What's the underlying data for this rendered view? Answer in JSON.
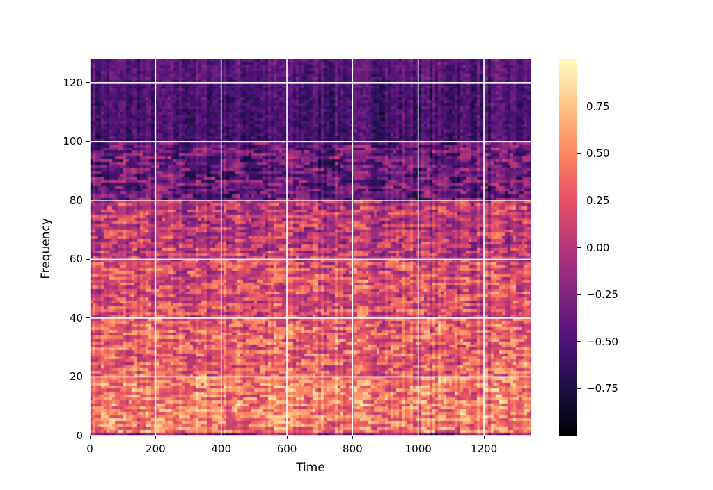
{
  "chart_data": {
    "type": "heatmap",
    "title": "",
    "xlabel": "Time",
    "ylabel": "Frequency",
    "xlim": [
      0,
      1344
    ],
    "ylim": [
      0,
      128
    ],
    "xticks": [
      "0",
      "200",
      "400",
      "600",
      "800",
      "1000",
      "1200"
    ],
    "yticks": [
      "0",
      "20",
      "40",
      "60",
      "80",
      "100",
      "120"
    ],
    "xtick_values": [
      0,
      200,
      400,
      600,
      800,
      1000,
      1200
    ],
    "ytick_values": [
      0,
      20,
      40,
      60,
      80,
      100,
      120
    ],
    "grid": true,
    "colormap": "magma",
    "colorbar": {
      "range": [
        -1,
        1
      ],
      "ticks": [
        "−0.75",
        "−0.50",
        "−0.25",
        "0.00",
        "0.25",
        "0.50",
        "0.75"
      ],
      "tick_values": [
        -0.75,
        -0.5,
        -0.25,
        0,
        0.25,
        0.5,
        0.75
      ]
    },
    "frequency_band_mean_values": [
      {
        "band": [
          0,
          1
        ],
        "mean": -0.3
      },
      {
        "band": [
          1,
          20
        ],
        "mean": 0.45
      },
      {
        "band": [
          20,
          40
        ],
        "mean": 0.3
      },
      {
        "band": [
          40,
          60
        ],
        "mean": 0.2
      },
      {
        "band": [
          60,
          80
        ],
        "mean": 0.05
      },
      {
        "band": [
          80,
          100
        ],
        "mean": -0.35
      },
      {
        "band": [
          100,
          120
        ],
        "mean": -0.55
      },
      {
        "band": [
          120,
          128
        ],
        "mean": -0.5
      }
    ]
  }
}
